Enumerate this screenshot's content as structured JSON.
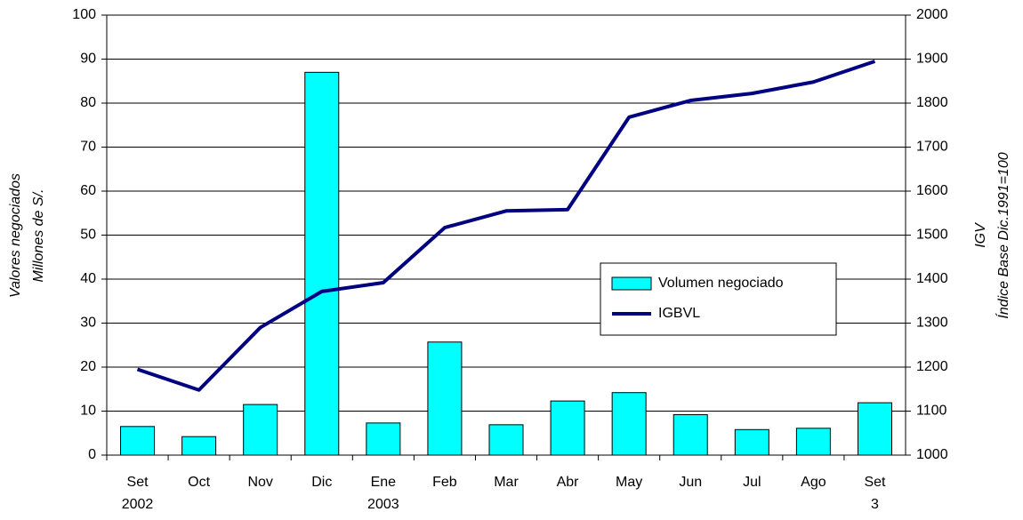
{
  "chart_data": {
    "type": "bar-line",
    "categories": [
      "Set",
      "Oct",
      "Nov",
      "Dic",
      "Ene",
      "Feb",
      "Mar",
      "Abr",
      "May",
      "Jun",
      "Jul",
      "Ago",
      "Set"
    ],
    "category_sublabels": [
      "2002",
      null,
      null,
      null,
      "2003",
      null,
      null,
      null,
      null,
      null,
      null,
      null,
      "3"
    ],
    "series": [
      {
        "name": "Volumen negociado",
        "type": "bar",
        "color": "#00ffff",
        "values": [
          6.5,
          4.2,
          11.5,
          87,
          7.3,
          25.7,
          6.9,
          12.3,
          14.2,
          9.2,
          5.8,
          6.1,
          11.9
        ]
      },
      {
        "name": "IGBVL",
        "type": "line",
        "axis": "y2",
        "color": "#000080",
        "values": [
          1195,
          1148,
          1290,
          1372,
          1392,
          1517,
          1555,
          1558,
          1768,
          1806,
          1822,
          1848,
          1895
        ]
      }
    ],
    "ylabel": [
      "Valores negociados",
      "Millones de S/."
    ],
    "y2label": [
      "IGV",
      "Índice Base Dic.1991=100"
    ],
    "ylim": [
      0,
      100
    ],
    "yticks": [
      0,
      10,
      20,
      30,
      40,
      50,
      60,
      70,
      80,
      90,
      100
    ],
    "y2lim": [
      1000,
      2000
    ],
    "y2ticks": [
      1000,
      1100,
      1200,
      1300,
      1400,
      1500,
      1600,
      1700,
      1800,
      1900,
      2000
    ],
    "grid": true
  }
}
